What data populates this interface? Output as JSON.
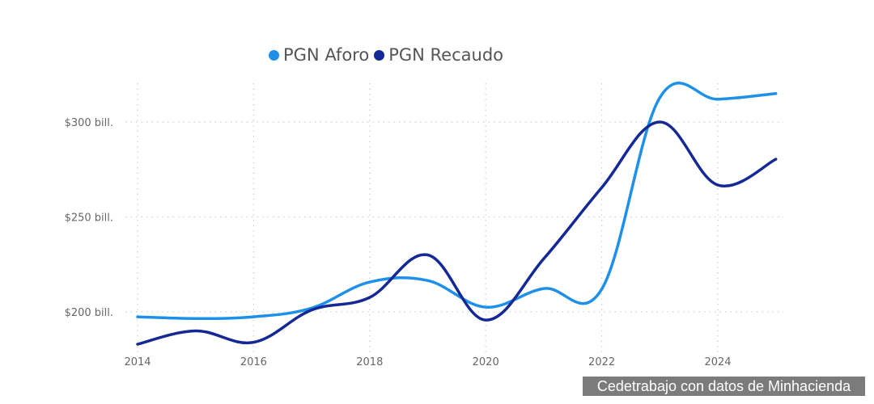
{
  "legend": [
    {
      "label": "PGN Aforo",
      "color": "#1e90ea"
    },
    {
      "label": "PGN Recaudo",
      "color": "#142996"
    }
  ],
  "source_note": "Cedetrabajo con datos de Minhacienda",
  "chart_data": {
    "type": "line",
    "title": "",
    "xlabel": "",
    "ylabel": "",
    "x": [
      2014,
      2015,
      2016,
      2017,
      2018,
      2019,
      2020,
      2021,
      2022,
      2023,
      2024,
      2025
    ],
    "x_tick_labels": [
      "2014",
      "2016",
      "2018",
      "2020",
      "2022",
      "2024"
    ],
    "y_tick_labels": [
      "$200 bill.",
      "$250 bill.",
      "$300 bill."
    ],
    "y_ticks": [
      200,
      250,
      300
    ],
    "ylim": [
      179,
      320
    ],
    "grid": true,
    "legend_position": "top",
    "series": [
      {
        "name": "PGN Aforo",
        "color": "#1e90ea",
        "values": [
          197.4,
          196.5,
          197.4,
          202,
          215.7,
          216.5,
          202.5,
          212.3,
          212,
          312.8,
          312,
          315
        ]
      },
      {
        "name": "PGN Recaudo",
        "color": "#142996",
        "values": [
          183,
          190,
          184,
          201,
          207.6,
          230,
          195.7,
          228,
          265.5,
          300,
          266.8,
          280.4
        ]
      }
    ]
  }
}
